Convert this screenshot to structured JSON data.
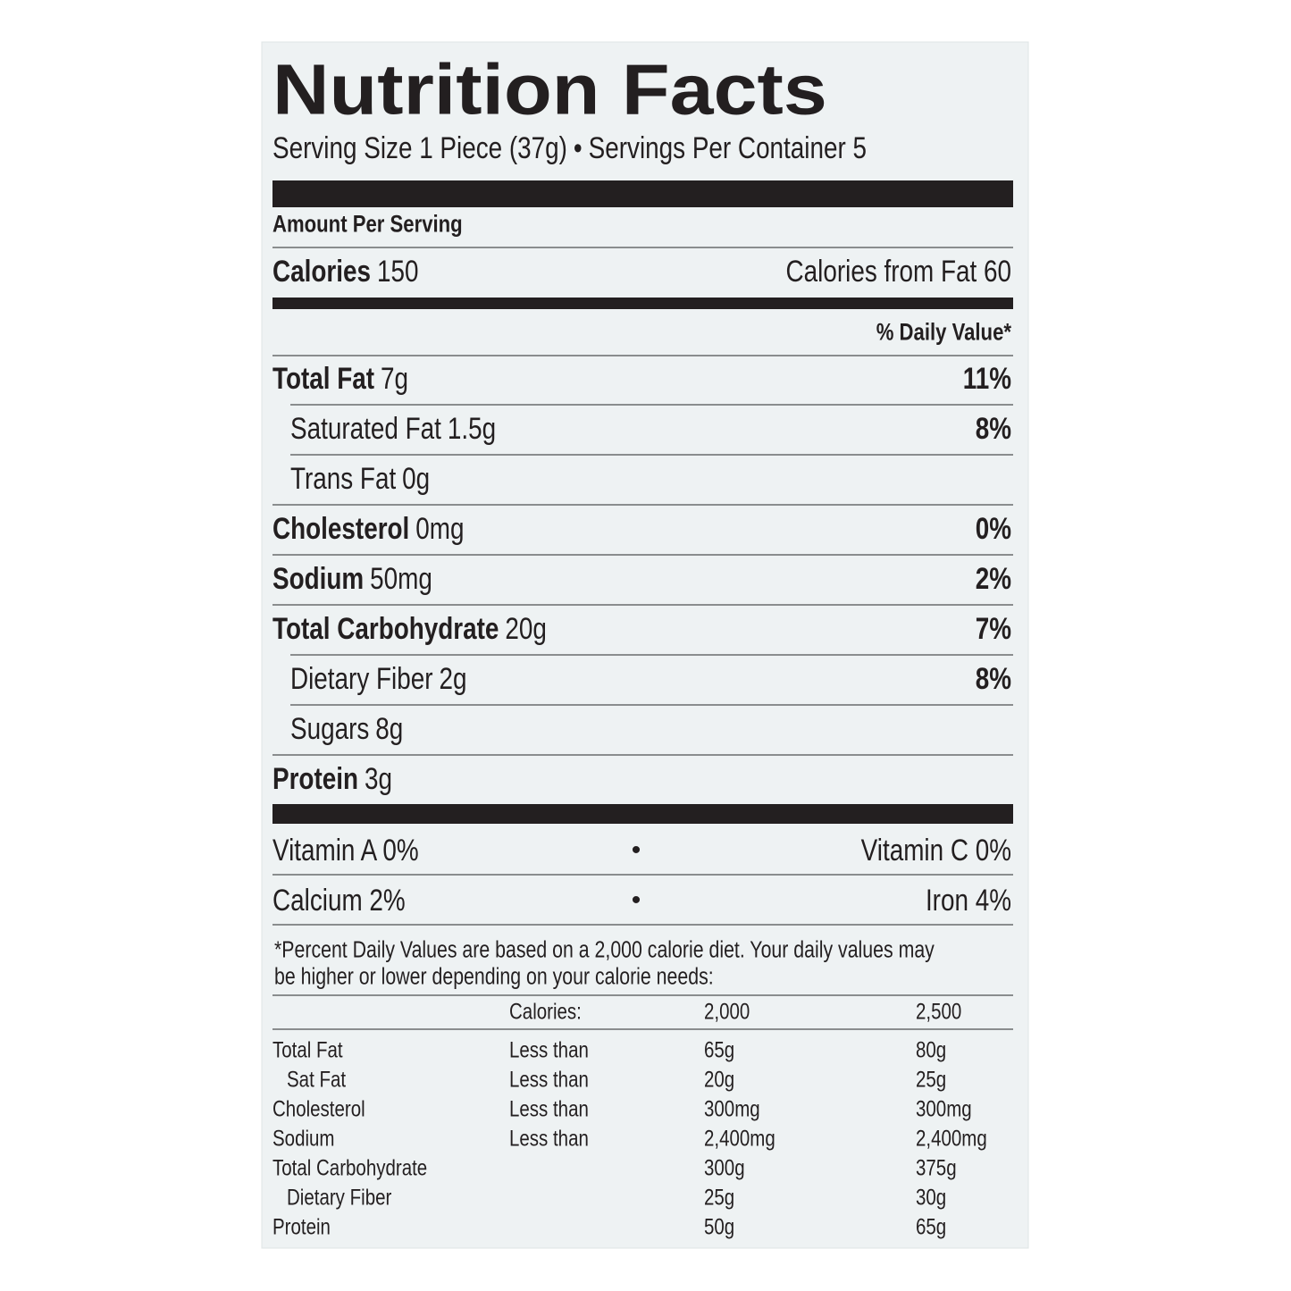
{
  "title": "Nutrition Facts",
  "serving": {
    "size": "Serving Size 1 Piece (37g)",
    "separator": "•",
    "per_container": "Servings Per Container 5"
  },
  "amount_per_serving": "Amount Per Serving",
  "calories": {
    "label": "Calories",
    "value": "150",
    "from_fat": "Calories from Fat 60"
  },
  "daily_value_header": "% Daily Value*",
  "nutrients": [
    {
      "name": "Total Fat",
      "amount": "7g",
      "dv": "11%",
      "sub": [
        {
          "name": "Saturated Fat",
          "amount": "1.5g",
          "dv": "8%"
        },
        {
          "name": "Trans Fat",
          "amount": "0g"
        }
      ]
    },
    {
      "name": "Cholesterol",
      "amount": "0mg",
      "dv": "0%"
    },
    {
      "name": "Sodium",
      "amount": "50mg",
      "dv": "2%"
    },
    {
      "name": "Total Carbohydrate",
      "amount": "20g",
      "dv": "7%",
      "sub": [
        {
          "name": "Dietary Fiber",
          "amount": "2g",
          "dv": "8%"
        },
        {
          "name": "Sugars",
          "amount": "8g"
        }
      ]
    },
    {
      "name": "Protein",
      "amount": "3g"
    }
  ],
  "vitamins": {
    "bullet": "•",
    "rows": [
      [
        "Vitamin A 0%",
        "Vitamin C 0%"
      ],
      [
        "Calcium 2%",
        "Iron 4%"
      ]
    ]
  },
  "footnote": [
    "*Percent Daily Values are based on a 2,000 calorie diet. Your daily values may",
    "be higher or lower depending on your calorie needs:"
  ],
  "reference": {
    "header": {
      "label": "Calories:",
      "columns": [
        "2,000",
        "2,500"
      ]
    },
    "rows": [
      {
        "name": "Total Fat",
        "limit": "Less than",
        "values": [
          "65g",
          "80g"
        ],
        "sub": [
          {
            "name": "Sat Fat",
            "limit": "Less than",
            "values": [
              "20g",
              "25g"
            ]
          }
        ]
      },
      {
        "name": "Cholesterol",
        "limit": "Less than",
        "values": [
          "300mg",
          "300mg"
        ]
      },
      {
        "name": "Sodium",
        "limit": "Less than",
        "values": [
          "2,400mg",
          "2,400mg"
        ]
      },
      {
        "name": "Total Carbohydrate",
        "values": [
          "300g",
          "375g"
        ],
        "sub": [
          {
            "name": "Dietary Fiber",
            "values": [
              "25g",
              "30g"
            ]
          }
        ]
      },
      {
        "name": "Protein",
        "values": [
          "50g",
          "65g"
        ]
      }
    ]
  }
}
